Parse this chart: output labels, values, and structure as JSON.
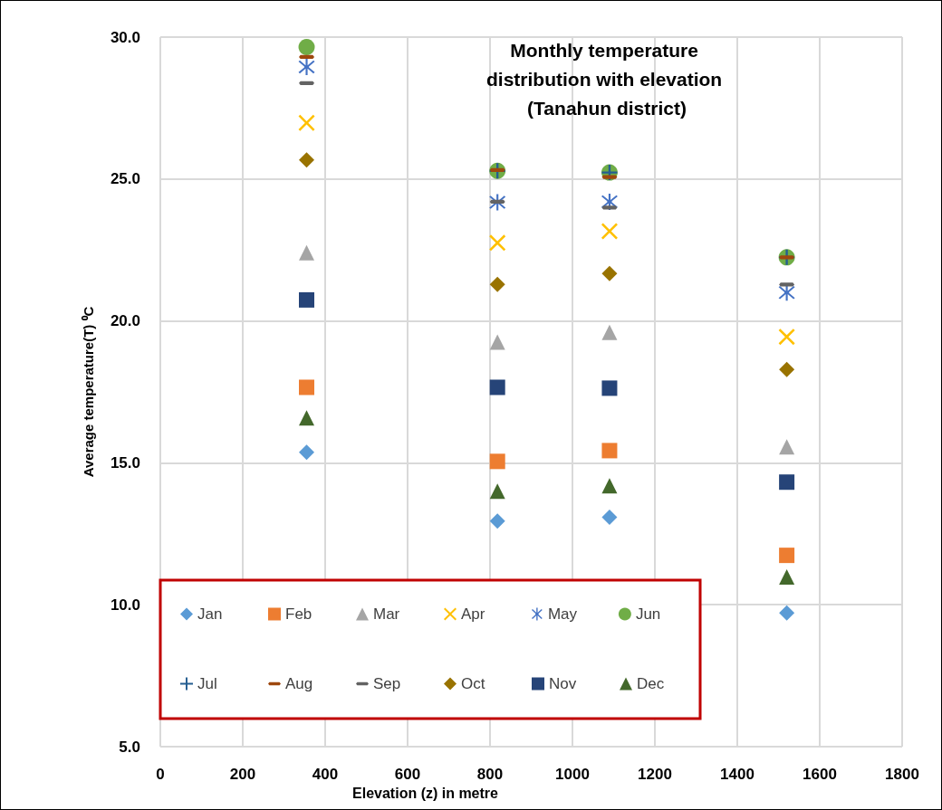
{
  "chart_data": {
    "type": "scatter",
    "title": "Monthly temperature distribution with elevation (Tanahun district)",
    "xlabel": "Elevation (z) in metre",
    "ylabel": "Average temperature(T) ⁰C",
    "x": [
      355,
      818,
      1090,
      1520
    ],
    "xlim": [
      0,
      1800
    ],
    "xticks": [
      0,
      200,
      400,
      600,
      800,
      1000,
      1200,
      1400,
      1600,
      1800
    ],
    "ylim": [
      5,
      30
    ],
    "yticks": [
      {
        "value": 5,
        "label": "5.0"
      },
      {
        "value": 10,
        "label": "10.0"
      },
      {
        "value": 15,
        "label": "15.0"
      },
      {
        "value": 20,
        "label": "20.0"
      },
      {
        "value": 25,
        "label": "25.0"
      },
      {
        "value": 30,
        "label": "30.0"
      }
    ],
    "grid": true,
    "legend": "bottom left",
    "series": [
      {
        "name": "Jan",
        "color": "#5b9bd5",
        "marker": "diamond",
        "values": [
          15.37,
          12.95,
          13.08,
          9.71
        ]
      },
      {
        "name": "Feb",
        "color": "#ed7d31",
        "marker": "square",
        "values": [
          17.66,
          15.05,
          15.43,
          11.74
        ]
      },
      {
        "name": "Mar",
        "color": "#a5a5a5",
        "marker": "triangle",
        "values": [
          22.4,
          19.25,
          19.6,
          15.56
        ]
      },
      {
        "name": "Apr",
        "color": "#ffc000",
        "marker": "cross",
        "values": [
          26.98,
          22.75,
          23.16,
          19.44
        ]
      },
      {
        "name": "May",
        "color": "#4472c4",
        "marker": "star",
        "values": [
          28.95,
          24.18,
          24.2,
          21.0
        ]
      },
      {
        "name": "Jun",
        "color": "#70ad47",
        "marker": "circle",
        "values": [
          29.65,
          25.29,
          25.23,
          22.24
        ]
      },
      {
        "name": "Jul",
        "color": "#255e91",
        "marker": "plus",
        "values": [
          null,
          25.29,
          25.23,
          22.24
        ]
      },
      {
        "name": "Aug",
        "color": "#9e480e",
        "values": [
          29.3,
          25.32,
          25.07,
          22.24
        ]
      },
      {
        "name": "Sep",
        "color": "#636363",
        "values": [
          28.38,
          24.2,
          23.99,
          21.28
        ]
      },
      {
        "name": "Oct",
        "color": "#997300",
        "marker": "diamond",
        "values": [
          25.67,
          21.29,
          21.67,
          18.29
        ]
      },
      {
        "name": "Nov",
        "color": "#264478",
        "marker": "square",
        "values": [
          20.74,
          17.66,
          17.63,
          14.32
        ]
      },
      {
        "name": "Dec",
        "color": "#43682b",
        "marker": "triangle",
        "values": [
          16.58,
          14.0,
          14.19,
          10.98
        ]
      }
    ]
  }
}
